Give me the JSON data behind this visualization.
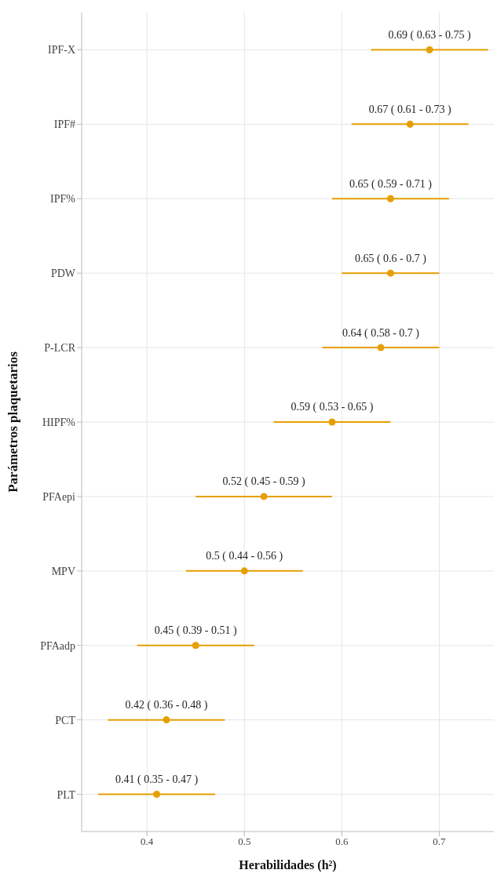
{
  "chart_data": {
    "type": "scatter",
    "orientation": "horizontal",
    "xlabel": "Herabilidades (h²)",
    "ylabel": "Parámetros plaquetarios",
    "categories": [
      "IPF-X",
      "IPF#",
      "IPF%",
      "PDW",
      "P-LCR",
      "HIPF%",
      "PFAepi",
      "MPV",
      "PFAadp",
      "PCT",
      "PLT"
    ],
    "values": [
      0.69,
      0.67,
      0.65,
      0.65,
      0.64,
      0.59,
      0.52,
      0.5,
      0.45,
      0.42,
      0.41
    ],
    "errors": [
      [
        0.63,
        0.75
      ],
      [
        0.61,
        0.73
      ],
      [
        0.59,
        0.71
      ],
      [
        0.6,
        0.7
      ],
      [
        0.58,
        0.7
      ],
      [
        0.53,
        0.65
      ],
      [
        0.45,
        0.59
      ],
      [
        0.44,
        0.56
      ],
      [
        0.39,
        0.51
      ],
      [
        0.36,
        0.48
      ],
      [
        0.35,
        0.47
      ]
    ],
    "value_labels": [
      "0.69 ( 0.63 - 0.75 )",
      "0.67 ( 0.61 - 0.73 )",
      "0.65 ( 0.59 - 0.71 )",
      "0.65 ( 0.6 - 0.7 )",
      "0.64 ( 0.58 - 0.7 )",
      "0.59 ( 0.53 - 0.65 )",
      "0.52 ( 0.45 - 0.59 )",
      "0.5 ( 0.44 - 0.56 )",
      "0.45 ( 0.39 - 0.51 )",
      "0.42 ( 0.36 - 0.48 )",
      "0.41 ( 0.35 - 0.47 )"
    ],
    "color": "#e69f00",
    "marker": "circle",
    "grid": true,
    "legend": false,
    "xlim": [
      0.333,
      0.756
    ],
    "xticks": [
      0.4,
      0.5,
      0.6,
      0.7
    ]
  }
}
